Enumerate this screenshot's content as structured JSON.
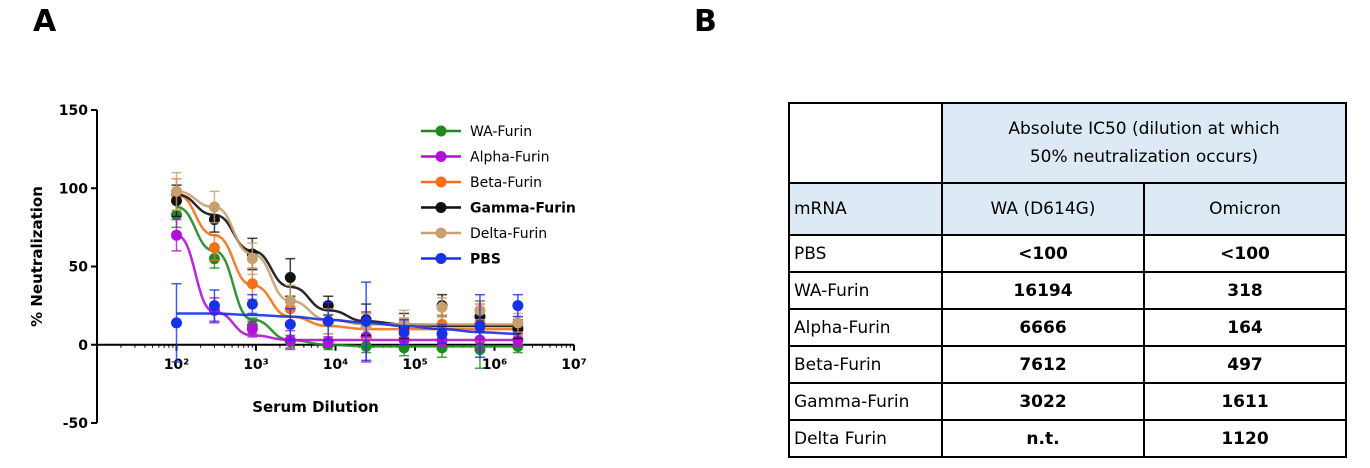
{
  "panels": {
    "a": "A",
    "b": "B"
  },
  "chart_data": {
    "type": "scatter",
    "xlabel": "Serum Dilution",
    "ylabel": "% Neutralization",
    "xscale": "log",
    "xlim": [
      10,
      10000000
    ],
    "ylim": [
      -50,
      150
    ],
    "x_tick_labels": [
      "10²",
      "10³",
      "10⁴",
      "10⁵",
      "10⁶",
      "10⁷"
    ],
    "y_tick_labels": [
      "150",
      "100",
      "50",
      "0",
      "-50"
    ],
    "legend_position": "top-right",
    "series": [
      {
        "name": "WA-Furin",
        "color": "#1f8a1f",
        "x": [
          100,
          300,
          900,
          2700,
          8100,
          24300,
          72900,
          218700,
          656100,
          1968300
        ],
        "y": [
          83,
          55,
          12,
          2,
          0,
          -1,
          -2,
          -2,
          -3,
          -1
        ],
        "err": [
          8,
          6,
          5,
          4,
          3,
          4,
          5,
          6,
          12,
          4
        ],
        "fit": [
          88,
          60,
          16,
          3,
          0,
          -1,
          -1,
          -1,
          -1,
          -1
        ]
      },
      {
        "name": "Alpha-Furin",
        "color": "#b40fd9",
        "x": [
          100,
          300,
          900,
          2700,
          8100,
          24300,
          72900,
          218700,
          656100,
          1968300
        ],
        "y": [
          70,
          22,
          10,
          3,
          2,
          5,
          3,
          3,
          3,
          3
        ],
        "err": [
          10,
          8,
          5,
          6,
          3,
          16,
          3,
          4,
          6,
          4
        ],
        "fit": [
          70,
          21,
          6,
          3,
          3,
          3,
          3,
          3,
          3,
          3
        ]
      },
      {
        "name": "Beta-Furin",
        "color": "#f27119",
        "x": [
          100,
          300,
          900,
          2700,
          8100,
          24300,
          72900,
          218700,
          656100,
          1968300
        ],
        "y": [
          96,
          62,
          39,
          23,
          15,
          12,
          11,
          13,
          14,
          12
        ],
        "err": [
          10,
          8,
          10,
          8,
          8,
          8,
          6,
          6,
          12,
          6
        ],
        "fit": [
          96,
          70,
          38,
          18,
          12,
          10,
          10,
          10,
          10,
          10
        ]
      },
      {
        "name": "Gamma-Furin",
        "color": "#111111",
        "x": [
          100,
          300,
          900,
          2700,
          8100,
          24300,
          72900,
          218700,
          656100,
          1968300
        ],
        "y": [
          92,
          80,
          58,
          43,
          25,
          16,
          12,
          25,
          18,
          10
        ],
        "err": [
          10,
          8,
          10,
          12,
          6,
          10,
          8,
          7,
          10,
          6
        ],
        "fit": [
          96,
          83,
          60,
          37,
          22,
          15,
          13,
          12,
          12,
          12
        ]
      },
      {
        "name": "Delta-Furin",
        "color": "#c8a070",
        "x": [
          100,
          300,
          900,
          2700,
          8100,
          24300,
          72900,
          218700,
          656100,
          1968300
        ],
        "y": [
          98,
          88,
          55,
          28,
          15,
          12,
          14,
          24,
          22,
          14
        ],
        "err": [
          12,
          10,
          10,
          10,
          8,
          8,
          8,
          6,
          6,
          6
        ],
        "fit": [
          98,
          88,
          58,
          28,
          16,
          13,
          13,
          13,
          13,
          13
        ]
      },
      {
        "name": "PBS",
        "color": "#1632e6",
        "x": [
          100,
          300,
          900,
          2700,
          8100,
          24300,
          72900,
          218700,
          656100,
          1968300
        ],
        "y": [
          14,
          25,
          26,
          13,
          15,
          15,
          8,
          7,
          12,
          25
        ],
        "err": [
          25,
          10,
          6,
          10,
          12,
          25,
          8,
          6,
          20,
          7
        ],
        "fit": [
          20,
          20,
          19,
          18,
          16,
          14,
          12,
          10,
          8,
          7
        ]
      }
    ]
  },
  "table": {
    "header_span": [
      "Absolute IC50 (dilution at which",
      "50% neutralization occurs)"
    ],
    "col_mrna": "mRNA",
    "col_wa": "WA (D614G)",
    "col_omicron": "Omicron",
    "rows": [
      {
        "name": "PBS",
        "wa": "<100",
        "omicron": "<100"
      },
      {
        "name": "WA-Furin",
        "wa": "16194",
        "omicron": "318"
      },
      {
        "name": "Alpha-Furin",
        "wa": "6666",
        "omicron": "164"
      },
      {
        "name": "Beta-Furin",
        "wa": "7612",
        "omicron": "497"
      },
      {
        "name": "Gamma-Furin",
        "wa": "3022",
        "omicron": "1611"
      },
      {
        "name": "Delta Furin",
        "wa": "n.t.",
        "omicron": "1120"
      }
    ]
  }
}
